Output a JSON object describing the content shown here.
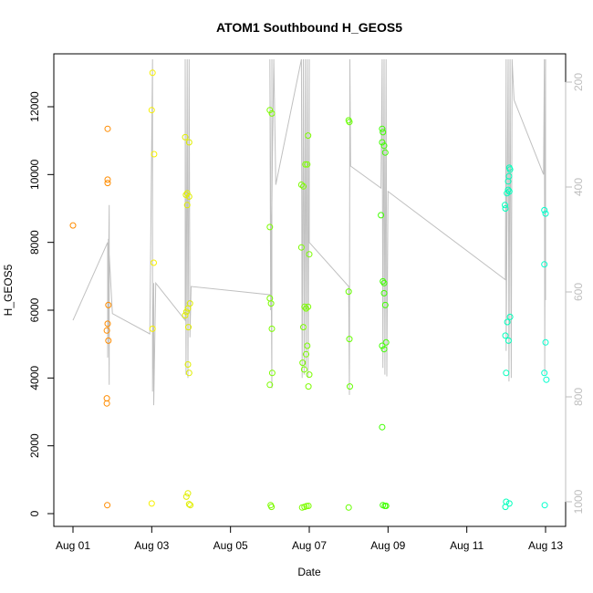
{
  "chart_data": {
    "type": "scatter",
    "title": "ATOM1 Southbound H_GEOS5",
    "xlabel": "Date",
    "ylabel": "H_GEOS5",
    "x_ticks": [
      "Aug 01",
      "Aug 03",
      "Aug 05",
      "Aug 07",
      "Aug 09",
      "Aug 11",
      "Aug 13"
    ],
    "y_ticks": [
      "0",
      "2000",
      "4000",
      "6000",
      "8000",
      "10000",
      "12000"
    ],
    "y2_ticks": [
      "200",
      "400",
      "600",
      "800",
      "1000"
    ],
    "xlim_days": [
      0.0,
      12.5
    ],
    "ylim": [
      -300,
      13400
    ],
    "y2lim": [
      1030,
      150
    ],
    "grid": false,
    "background_trace_color": "#c0c0c0",
    "axis_color_right": "#bebebe",
    "points": [
      {
        "x": 0.0,
        "y": 8500,
        "color": "#ff8c00"
      },
      {
        "x": 0.88,
        "y": 11350,
        "color": "#ff8c00"
      },
      {
        "x": 0.88,
        "y": 9850,
        "color": "#ff8c00"
      },
      {
        "x": 0.88,
        "y": 9750,
        "color": "#ff8c00"
      },
      {
        "x": 0.9,
        "y": 6150,
        "color": "#ff8c00"
      },
      {
        "x": 0.88,
        "y": 5600,
        "color": "#ff8c00"
      },
      {
        "x": 0.86,
        "y": 5400,
        "color": "#ff8c00"
      },
      {
        "x": 0.9,
        "y": 5100,
        "color": "#ff8c00"
      },
      {
        "x": 0.86,
        "y": 3400,
        "color": "#ff8c00"
      },
      {
        "x": 0.86,
        "y": 3250,
        "color": "#ff8c00"
      },
      {
        "x": 0.87,
        "y": 250,
        "color": "#ff8c00"
      },
      {
        "x": 2.02,
        "y": 13000,
        "color": "#f7f000"
      },
      {
        "x": 2.0,
        "y": 11900,
        "color": "#f7f000"
      },
      {
        "x": 2.06,
        "y": 10600,
        "color": "#f7f000"
      },
      {
        "x": 2.05,
        "y": 7400,
        "color": "#f7f000"
      },
      {
        "x": 2.02,
        "y": 5450,
        "color": "#f7f000"
      },
      {
        "x": 2.0,
        "y": 300,
        "color": "#f7f000"
      },
      {
        "x": 2.85,
        "y": 11100,
        "color": "#e0ee00"
      },
      {
        "x": 2.95,
        "y": 10950,
        "color": "#e0ee00"
      },
      {
        "x": 2.9,
        "y": 9450,
        "color": "#e0ee00"
      },
      {
        "x": 2.87,
        "y": 9400,
        "color": "#e0ee00"
      },
      {
        "x": 2.95,
        "y": 9350,
        "color": "#e0ee00"
      },
      {
        "x": 2.9,
        "y": 9100,
        "color": "#e0ee00"
      },
      {
        "x": 2.97,
        "y": 6200,
        "color": "#e0ee00"
      },
      {
        "x": 2.92,
        "y": 6050,
        "color": "#e0ee00"
      },
      {
        "x": 2.88,
        "y": 5950,
        "color": "#e0ee00"
      },
      {
        "x": 2.85,
        "y": 5850,
        "color": "#e0ee00"
      },
      {
        "x": 2.93,
        "y": 5500,
        "color": "#e0ee00"
      },
      {
        "x": 2.92,
        "y": 4400,
        "color": "#e0ee00"
      },
      {
        "x": 2.95,
        "y": 4150,
        "color": "#e0ee00"
      },
      {
        "x": 2.88,
        "y": 500,
        "color": "#e0ee00"
      },
      {
        "x": 2.92,
        "y": 600,
        "color": "#e0ee00"
      },
      {
        "x": 2.95,
        "y": 280,
        "color": "#e0ee00"
      },
      {
        "x": 2.98,
        "y": 250,
        "color": "#e0ee00"
      },
      {
        "x": 5.0,
        "y": 11900,
        "color": "#7cfc00"
      },
      {
        "x": 5.05,
        "y": 11800,
        "color": "#7cfc00"
      },
      {
        "x": 5.0,
        "y": 8450,
        "color": "#7cfc00"
      },
      {
        "x": 5.0,
        "y": 6350,
        "color": "#7cfc00"
      },
      {
        "x": 5.03,
        "y": 6200,
        "color": "#7cfc00"
      },
      {
        "x": 5.05,
        "y": 5450,
        "color": "#7cfc00"
      },
      {
        "x": 5.06,
        "y": 4150,
        "color": "#7cfc00"
      },
      {
        "x": 5.0,
        "y": 3800,
        "color": "#7cfc00"
      },
      {
        "x": 5.02,
        "y": 250,
        "color": "#7cfc00"
      },
      {
        "x": 5.04,
        "y": 200,
        "color": "#7cfc00"
      },
      {
        "x": 5.8,
        "y": 9700,
        "color": "#7cfc00"
      },
      {
        "x": 5.85,
        "y": 9650,
        "color": "#7cfc00"
      },
      {
        "x": 5.9,
        "y": 10300,
        "color": "#7cfc00"
      },
      {
        "x": 5.95,
        "y": 10300,
        "color": "#7cfc00"
      },
      {
        "x": 5.97,
        "y": 11150,
        "color": "#7cfc00"
      },
      {
        "x": 5.8,
        "y": 7850,
        "color": "#7cfc00"
      },
      {
        "x": 6.0,
        "y": 7650,
        "color": "#7cfc00"
      },
      {
        "x": 5.88,
        "y": 6100,
        "color": "#7cfc00"
      },
      {
        "x": 5.92,
        "y": 6050,
        "color": "#7cfc00"
      },
      {
        "x": 5.97,
        "y": 6100,
        "color": "#7cfc00"
      },
      {
        "x": 5.85,
        "y": 5500,
        "color": "#7cfc00"
      },
      {
        "x": 5.95,
        "y": 4950,
        "color": "#7cfc00"
      },
      {
        "x": 5.92,
        "y": 4700,
        "color": "#7cfc00"
      },
      {
        "x": 5.83,
        "y": 4450,
        "color": "#7cfc00"
      },
      {
        "x": 5.87,
        "y": 4250,
        "color": "#7cfc00"
      },
      {
        "x": 6.0,
        "y": 4100,
        "color": "#7cfc00"
      },
      {
        "x": 5.98,
        "y": 3750,
        "color": "#7cfc00"
      },
      {
        "x": 5.82,
        "y": 180,
        "color": "#7cfc00"
      },
      {
        "x": 5.88,
        "y": 200,
        "color": "#7cfc00"
      },
      {
        "x": 5.93,
        "y": 220,
        "color": "#7cfc00"
      },
      {
        "x": 5.98,
        "y": 230,
        "color": "#7cfc00"
      },
      {
        "x": 7.0,
        "y": 11600,
        "color": "#66ff00"
      },
      {
        "x": 7.02,
        "y": 11550,
        "color": "#66ff00"
      },
      {
        "x": 7.0,
        "y": 6550,
        "color": "#66ff00"
      },
      {
        "x": 7.02,
        "y": 5150,
        "color": "#66ff00"
      },
      {
        "x": 7.03,
        "y": 3750,
        "color": "#66ff00"
      },
      {
        "x": 7.0,
        "y": 180,
        "color": "#66ff00"
      },
      {
        "x": 7.85,
        "y": 11350,
        "color": "#3fff00"
      },
      {
        "x": 7.87,
        "y": 11250,
        "color": "#3fff00"
      },
      {
        "x": 7.85,
        "y": 10950,
        "color": "#3fff00"
      },
      {
        "x": 7.9,
        "y": 10850,
        "color": "#3fff00"
      },
      {
        "x": 7.93,
        "y": 10650,
        "color": "#3fff00"
      },
      {
        "x": 7.82,
        "y": 8800,
        "color": "#3fff00"
      },
      {
        "x": 7.87,
        "y": 6850,
        "color": "#3fff00"
      },
      {
        "x": 7.9,
        "y": 6800,
        "color": "#3fff00"
      },
      {
        "x": 7.9,
        "y": 6500,
        "color": "#3fff00"
      },
      {
        "x": 7.93,
        "y": 6150,
        "color": "#3fff00"
      },
      {
        "x": 7.95,
        "y": 5050,
        "color": "#3fff00"
      },
      {
        "x": 7.85,
        "y": 4950,
        "color": "#3fff00"
      },
      {
        "x": 7.9,
        "y": 4850,
        "color": "#3fff00"
      },
      {
        "x": 7.85,
        "y": 2550,
        "color": "#3fff00"
      },
      {
        "x": 7.87,
        "y": 250,
        "color": "#3fff00"
      },
      {
        "x": 7.92,
        "y": 230,
        "color": "#3fff00"
      },
      {
        "x": 7.95,
        "y": 230,
        "color": "#3fff00"
      },
      {
        "x": 11.08,
        "y": 10200,
        "color": "#00ffbb"
      },
      {
        "x": 11.1,
        "y": 10150,
        "color": "#00ffbb"
      },
      {
        "x": 11.07,
        "y": 9950,
        "color": "#00ffbb"
      },
      {
        "x": 11.05,
        "y": 9800,
        "color": "#00ffbb"
      },
      {
        "x": 11.05,
        "y": 9550,
        "color": "#00ffbb"
      },
      {
        "x": 11.02,
        "y": 9450,
        "color": "#00ffbb"
      },
      {
        "x": 11.08,
        "y": 9500,
        "color": "#00ffbb"
      },
      {
        "x": 10.97,
        "y": 9100,
        "color": "#00ffbb"
      },
      {
        "x": 10.98,
        "y": 9000,
        "color": "#00ffbb"
      },
      {
        "x": 11.1,
        "y": 5800,
        "color": "#00ffbb"
      },
      {
        "x": 11.03,
        "y": 5650,
        "color": "#00ffbb"
      },
      {
        "x": 10.98,
        "y": 5250,
        "color": "#00ffbb"
      },
      {
        "x": 11.06,
        "y": 5100,
        "color": "#00ffbb"
      },
      {
        "x": 11.0,
        "y": 4150,
        "color": "#00ffbb"
      },
      {
        "x": 11.0,
        "y": 350,
        "color": "#00ffbb"
      },
      {
        "x": 11.08,
        "y": 300,
        "color": "#00ffbb"
      },
      {
        "x": 10.98,
        "y": 200,
        "color": "#00ffbb"
      },
      {
        "x": 11.97,
        "y": 8950,
        "color": "#00ffcc"
      },
      {
        "x": 12.0,
        "y": 8850,
        "color": "#00ffcc"
      },
      {
        "x": 11.97,
        "y": 7350,
        "color": "#00ffcc"
      },
      {
        "x": 12.0,
        "y": 5050,
        "color": "#00ffcc"
      },
      {
        "x": 11.97,
        "y": 4150,
        "color": "#00ffcc"
      },
      {
        "x": 12.02,
        "y": 3950,
        "color": "#00ffcc"
      },
      {
        "x": 11.98,
        "y": 250,
        "color": "#00ffcc"
      }
    ],
    "trace": [
      [
        0.0,
        5700
      ],
      [
        0.88,
        8000
      ],
      [
        0.88,
        4600
      ],
      [
        0.92,
        9100
      ],
      [
        0.92,
        3800
      ],
      [
        0.9,
        8100
      ],
      [
        1.0,
        5900
      ],
      [
        1.95,
        5300
      ],
      [
        2.02,
        13400
      ],
      [
        2.02,
        3600
      ],
      [
        2.05,
        6800
      ],
      [
        2.05,
        3200
      ],
      [
        2.1,
        6800
      ],
      [
        2.85,
        5700
      ],
      [
        2.85,
        13400
      ],
      [
        2.87,
        4100
      ],
      [
        2.9,
        13400
      ],
      [
        2.92,
        4000
      ],
      [
        2.95,
        13400
      ],
      [
        2.97,
        5200
      ],
      [
        3.0,
        6700
      ],
      [
        5.05,
        6450
      ],
      [
        5.05,
        13400
      ],
      [
        5.05,
        3700
      ],
      [
        5.0,
        13400
      ],
      [
        5.02,
        6000
      ],
      [
        5.06,
        10050
      ],
      [
        5.1,
        13400
      ],
      [
        5.15,
        9700
      ],
      [
        5.8,
        13400
      ],
      [
        5.82,
        4000
      ],
      [
        5.85,
        13400
      ],
      [
        5.87,
        4100
      ],
      [
        5.9,
        13400
      ],
      [
        5.92,
        4300
      ],
      [
        5.95,
        13400
      ],
      [
        5.97,
        4000
      ],
      [
        6.0,
        13400
      ],
      [
        6.0,
        8000
      ],
      [
        7.0,
        6700
      ],
      [
        7.02,
        3500
      ],
      [
        7.03,
        13400
      ],
      [
        7.05,
        10250
      ],
      [
        7.82,
        9600
      ],
      [
        7.85,
        13400
      ],
      [
        7.87,
        4300
      ],
      [
        7.9,
        13400
      ],
      [
        7.92,
        4100
      ],
      [
        7.95,
        13400
      ],
      [
        7.97,
        4050
      ],
      [
        8.0,
        9500
      ],
      [
        10.98,
        6900
      ],
      [
        11.0,
        13400
      ],
      [
        11.0,
        4800
      ],
      [
        11.05,
        13400
      ],
      [
        11.07,
        3900
      ],
      [
        11.1,
        13400
      ],
      [
        11.13,
        4000
      ],
      [
        11.15,
        13400
      ],
      [
        11.2,
        12200
      ],
      [
        11.95,
        10000
      ],
      [
        11.97,
        13400
      ],
      [
        11.98,
        4100
      ],
      [
        12.0,
        13400
      ],
      [
        12.0,
        6300
      ]
    ]
  }
}
